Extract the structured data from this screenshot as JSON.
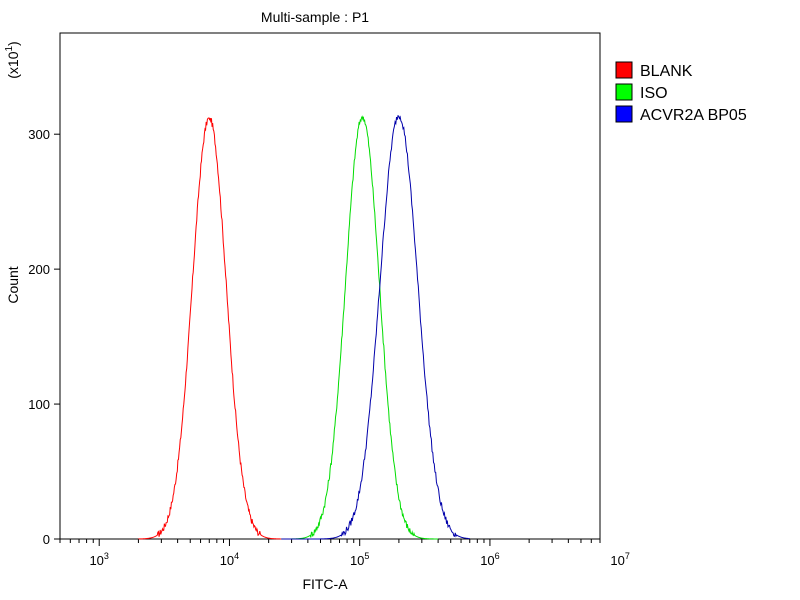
{
  "chart_data": {
    "type": "line",
    "title": "Multi-sample : P1",
    "xlabel": "FITC-A",
    "ylabel": "Count",
    "y_multiplier_label": "(x10",
    "y_multiplier_exp": "1",
    "y_multiplier_close": ")",
    "x_scale": "log",
    "xlim": [
      500,
      7000000
    ],
    "ylim": [
      0,
      37.5
    ],
    "x_ticks": [
      {
        "value": 1000,
        "base": "10",
        "exp": "3"
      },
      {
        "value": 10000,
        "base": "10",
        "exp": "4"
      },
      {
        "value": 100000,
        "base": "10",
        "exp": "5"
      },
      {
        "value": 1000000,
        "base": "10",
        "exp": "6"
      },
      {
        "value": 10000000,
        "base": "10",
        "exp": "7"
      }
    ],
    "y_ticks": [
      {
        "value": 0,
        "label": "0"
      },
      {
        "value": 10,
        "label": "100"
      },
      {
        "value": 20,
        "label": "200"
      },
      {
        "value": 30,
        "label": "300"
      }
    ],
    "grid": false,
    "legend_position": "right",
    "series": [
      {
        "name": "BLANK",
        "color": "#ff0000",
        "swatch": "#ff0000",
        "peak_x": 7000,
        "peak_y": 31.2,
        "sigma_decades": 0.13,
        "range": [
          2000,
          30000
        ]
      },
      {
        "name": "ISO",
        "color": "#00dd00",
        "swatch": "#00ff00",
        "peak_x": 105000,
        "peak_y": 31.3,
        "sigma_decades": 0.13,
        "range": [
          25000,
          400000
        ]
      },
      {
        "name": "ACVR2A BP05",
        "color": "#0000aa",
        "swatch": "#0000ff",
        "peak_x": 200000,
        "peak_y": 31.4,
        "sigma_decades": 0.145,
        "range": [
          25000,
          700000
        ]
      }
    ]
  }
}
